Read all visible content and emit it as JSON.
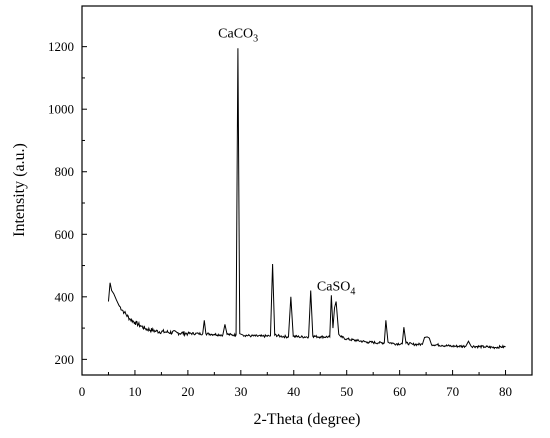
{
  "chart_data": {
    "type": "line",
    "title": "",
    "xlabel": "2-Theta (degree)",
    "ylabel": "Intensity (a.u.)",
    "xlim": [
      0,
      85
    ],
    "ylim": [
      150,
      1330
    ],
    "xticks": [
      0,
      10,
      20,
      30,
      40,
      50,
      60,
      70,
      80
    ],
    "yticks": [
      200,
      400,
      600,
      800,
      1000,
      1200
    ],
    "grid": false,
    "series": [
      {
        "color": "#000000",
        "x": [
          5.0,
          5.3,
          5.6,
          6.0,
          6.5,
          7.0,
          8.0,
          9.0,
          10.0,
          11.0,
          12.0,
          14.0,
          16.0,
          18.0,
          20.0,
          22.0,
          22.8,
          23.1,
          23.4,
          25.0,
          26.6,
          27.0,
          27.4,
          28.5,
          29.1,
          29.45,
          29.8,
          30.4,
          32.0,
          34.0,
          35.6,
          36.0,
          36.4,
          37.5,
          39.0,
          39.45,
          39.9,
          41.0,
          42.8,
          43.2,
          43.6,
          45.0,
          46.8,
          47.1,
          47.4,
          47.7,
          48.0,
          48.5,
          48.9,
          50.0,
          52.0,
          54.0,
          56.0,
          57.1,
          57.4,
          57.8,
          59.0,
          60.5,
          60.8,
          61.2,
          62.5,
          64.3,
          64.7,
          65.2,
          65.6,
          66.0,
          68.0,
          70.0,
          72.5,
          73.0,
          73.5,
          76.0,
          78.0,
          79.0,
          80.0
        ],
        "y": [
          385,
          445,
          420,
          410,
          390,
          372,
          350,
          330,
          318,
          308,
          298,
          290,
          287,
          285,
          283,
          282,
          282,
          325,
          282,
          280,
          278,
          312,
          280,
          278,
          278,
          1195,
          282,
          278,
          275,
          274,
          275,
          505,
          278,
          274,
          272,
          400,
          274,
          272,
          272,
          420,
          274,
          272,
          272,
          405,
          300,
          365,
          385,
          280,
          272,
          265,
          260,
          255,
          253,
          253,
          325,
          255,
          250,
          250,
          303,
          252,
          248,
          248,
          270,
          272,
          268,
          248,
          245,
          242,
          242,
          258,
          242,
          240,
          238,
          240,
          240
        ]
      }
    ],
    "annotations": [
      {
        "label": "CaCO",
        "sub": "3",
        "x": 29.5,
        "y": 1230
      },
      {
        "label": "CaSO",
        "sub": "4",
        "x": 48.0,
        "y": 420
      }
    ]
  }
}
